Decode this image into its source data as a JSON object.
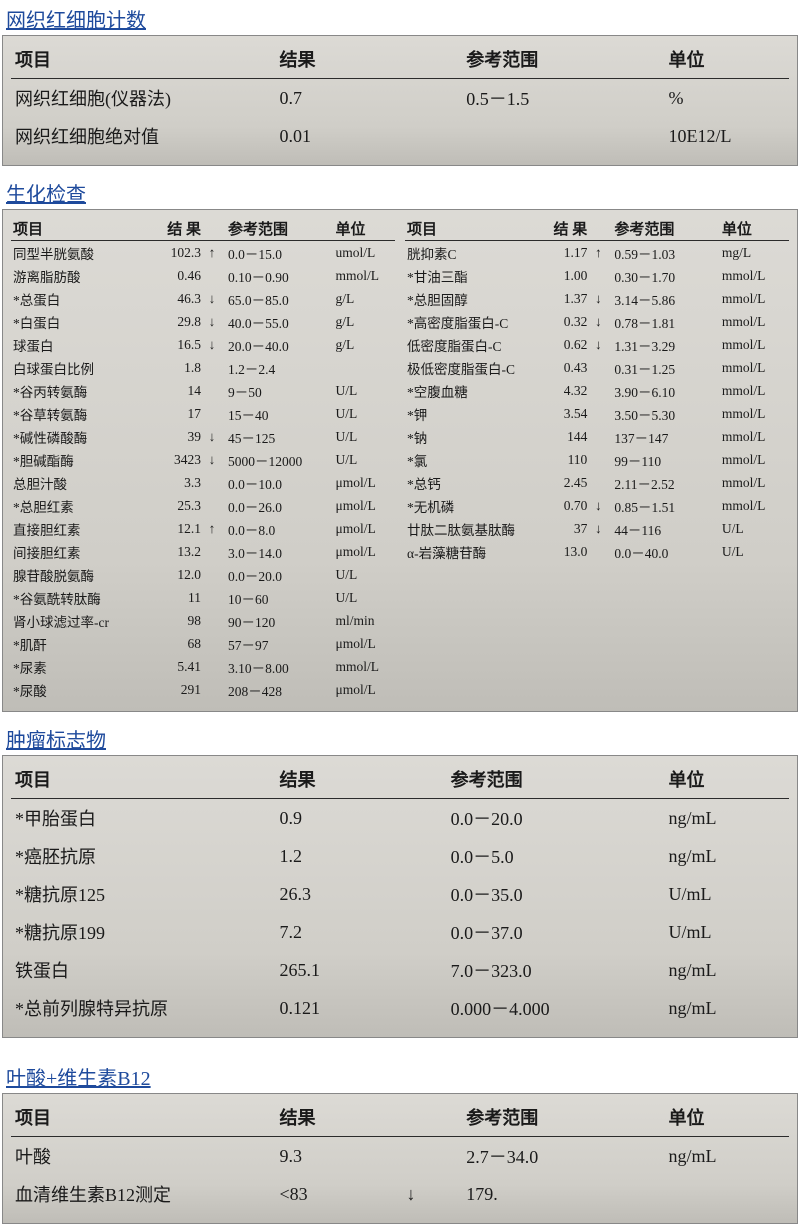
{
  "colors": {
    "title": "#1e4a9c",
    "panel_bg_top": "#dcdad5",
    "panel_bg_bottom": "#bfbdb7",
    "rule": "#2b2b2b",
    "text": "#1a1a1a"
  },
  "headers": {
    "item": "项目",
    "result": "结果",
    "result_spaced": "结 果",
    "ref": "参考范围",
    "unit": "单位"
  },
  "sections": {
    "retic": {
      "title": "网织红细胞计数",
      "rows": [
        {
          "item": "网织红细胞(仪器法)",
          "result": "0.7",
          "flag": "",
          "ref": "0.5－1.5",
          "unit": "%"
        },
        {
          "item": "网织红细胞绝对值",
          "result": "0.01",
          "flag": "",
          "ref": "",
          "unit": "10E12/L"
        }
      ]
    },
    "biochem": {
      "title": "生化检查",
      "left": [
        {
          "item": "同型半胱氨酸",
          "result": "102.3",
          "flag": "↑",
          "ref": "0.0－15.0",
          "unit": "umol/L"
        },
        {
          "item": "游离脂肪酸",
          "result": "0.46",
          "flag": "",
          "ref": "0.10－0.90",
          "unit": "mmol/L"
        },
        {
          "item": "*总蛋白",
          "result": "46.3",
          "flag": "↓",
          "ref": "65.0－85.0",
          "unit": "g/L"
        },
        {
          "item": "*白蛋白",
          "result": "29.8",
          "flag": "↓",
          "ref": "40.0－55.0",
          "unit": "g/L"
        },
        {
          "item": "球蛋白",
          "result": "16.5",
          "flag": "↓",
          "ref": "20.0－40.0",
          "unit": "g/L"
        },
        {
          "item": "白球蛋白比例",
          "result": "1.8",
          "flag": "",
          "ref": "1.2－2.4",
          "unit": ""
        },
        {
          "item": "*谷丙转氨酶",
          "result": "14",
          "flag": "",
          "ref": "9－50",
          "unit": "U/L"
        },
        {
          "item": "*谷草转氨酶",
          "result": "17",
          "flag": "",
          "ref": "15－40",
          "unit": "U/L"
        },
        {
          "item": "*碱性磷酸酶",
          "result": "39",
          "flag": "↓",
          "ref": "45－125",
          "unit": "U/L"
        },
        {
          "item": "*胆碱酯酶",
          "result": "3423",
          "flag": "↓",
          "ref": "5000－12000",
          "unit": "U/L"
        },
        {
          "item": "总胆汁酸",
          "result": "3.3",
          "flag": "",
          "ref": "0.0－10.0",
          "unit": "μmol/L"
        },
        {
          "item": "*总胆红素",
          "result": "25.3",
          "flag": "",
          "ref": "0.0－26.0",
          "unit": "μmol/L"
        },
        {
          "item": "直接胆红素",
          "result": "12.1",
          "flag": "↑",
          "ref": "0.0－8.0",
          "unit": "μmol/L"
        },
        {
          "item": "间接胆红素",
          "result": "13.2",
          "flag": "",
          "ref": "3.0－14.0",
          "unit": "μmol/L"
        },
        {
          "item": "腺苷酸脱氨酶",
          "result": "12.0",
          "flag": "",
          "ref": "0.0－20.0",
          "unit": "U/L"
        },
        {
          "item": "*谷氨酰转肽酶",
          "result": "11",
          "flag": "",
          "ref": "10－60",
          "unit": "U/L"
        },
        {
          "item": "肾小球滤过率-cr",
          "result": "98",
          "flag": "",
          "ref": "90－120",
          "unit": "ml/min"
        },
        {
          "item": "*肌酐",
          "result": "68",
          "flag": "",
          "ref": "57－97",
          "unit": "μmol/L"
        },
        {
          "item": "*尿素",
          "result": "5.41",
          "flag": "",
          "ref": "3.10－8.00",
          "unit": "mmol/L"
        },
        {
          "item": "*尿酸",
          "result": "291",
          "flag": "",
          "ref": "208－428",
          "unit": "μmol/L"
        }
      ],
      "right": [
        {
          "item": "胱抑素C",
          "result": "1.17",
          "flag": "↑",
          "ref": "0.59－1.03",
          "unit": "mg/L"
        },
        {
          "item": "*甘油三酯",
          "result": "1.00",
          "flag": "",
          "ref": "0.30－1.70",
          "unit": "mmol/L"
        },
        {
          "item": "*总胆固醇",
          "result": "1.37",
          "flag": "↓",
          "ref": "3.14－5.86",
          "unit": "mmol/L"
        },
        {
          "item": "*高密度脂蛋白-C",
          "result": "0.32",
          "flag": "↓",
          "ref": "0.78－1.81",
          "unit": "mmol/L"
        },
        {
          "item": "低密度脂蛋白-C",
          "result": "0.62",
          "flag": "↓",
          "ref": "1.31－3.29",
          "unit": "mmol/L"
        },
        {
          "item": "极低密度脂蛋白-C",
          "result": "0.43",
          "flag": "",
          "ref": "0.31－1.25",
          "unit": "mmol/L"
        },
        {
          "item": "*空腹血糖",
          "result": "4.32",
          "flag": "",
          "ref": "3.90－6.10",
          "unit": "mmol/L"
        },
        {
          "item": "*钾",
          "result": "3.54",
          "flag": "",
          "ref": "3.50－5.30",
          "unit": "mmol/L"
        },
        {
          "item": "*钠",
          "result": "144",
          "flag": "",
          "ref": "137－147",
          "unit": "mmol/L"
        },
        {
          "item": "*氯",
          "result": "110",
          "flag": "",
          "ref": "99－110",
          "unit": "mmol/L"
        },
        {
          "item": "*总钙",
          "result": "2.45",
          "flag": "",
          "ref": "2.11－2.52",
          "unit": "mmol/L"
        },
        {
          "item": "*无机磷",
          "result": "0.70",
          "flag": "↓",
          "ref": "0.85－1.51",
          "unit": "mmol/L"
        },
        {
          "item": "廿肽二肽氨基肽酶",
          "result": "37",
          "flag": "↓",
          "ref": "44－116",
          "unit": "U/L"
        },
        {
          "item": "α-岩藻糖苷酶",
          "result": "13.0",
          "flag": "",
          "ref": "0.0－40.0",
          "unit": "U/L"
        }
      ]
    },
    "tumor": {
      "title": "肿瘤标志物",
      "rows": [
        {
          "item": "*甲胎蛋白",
          "result": "0.9",
          "flag": "",
          "ref": "0.0－20.0",
          "unit": "ng/mL"
        },
        {
          "item": "*癌胚抗原",
          "result": "1.2",
          "flag": "",
          "ref": "0.0－5.0",
          "unit": "ng/mL"
        },
        {
          "item": "*糖抗原125",
          "result": "26.3",
          "flag": "",
          "ref": "0.0－35.0",
          "unit": "U/mL"
        },
        {
          "item": "*糖抗原199",
          "result": "7.2",
          "flag": "",
          "ref": "0.0－37.0",
          "unit": "U/mL"
        },
        {
          "item": "铁蛋白",
          "result": "265.1",
          "flag": "",
          "ref": "7.0－323.0",
          "unit": "ng/mL"
        },
        {
          "item": "*总前列腺特异抗原",
          "result": "0.121",
          "flag": "",
          "ref": "0.000－4.000",
          "unit": "ng/mL"
        }
      ]
    },
    "folate": {
      "title": "叶酸+维生素B12",
      "rows": [
        {
          "item": "叶酸",
          "result": "9.3",
          "flag": "",
          "ref": "2.7－34.0",
          "unit": "ng/mL"
        },
        {
          "item": "血清维生素B12测定",
          "result": "<83",
          "flag": "↓",
          "ref": "179.",
          "unit": ""
        }
      ]
    }
  }
}
